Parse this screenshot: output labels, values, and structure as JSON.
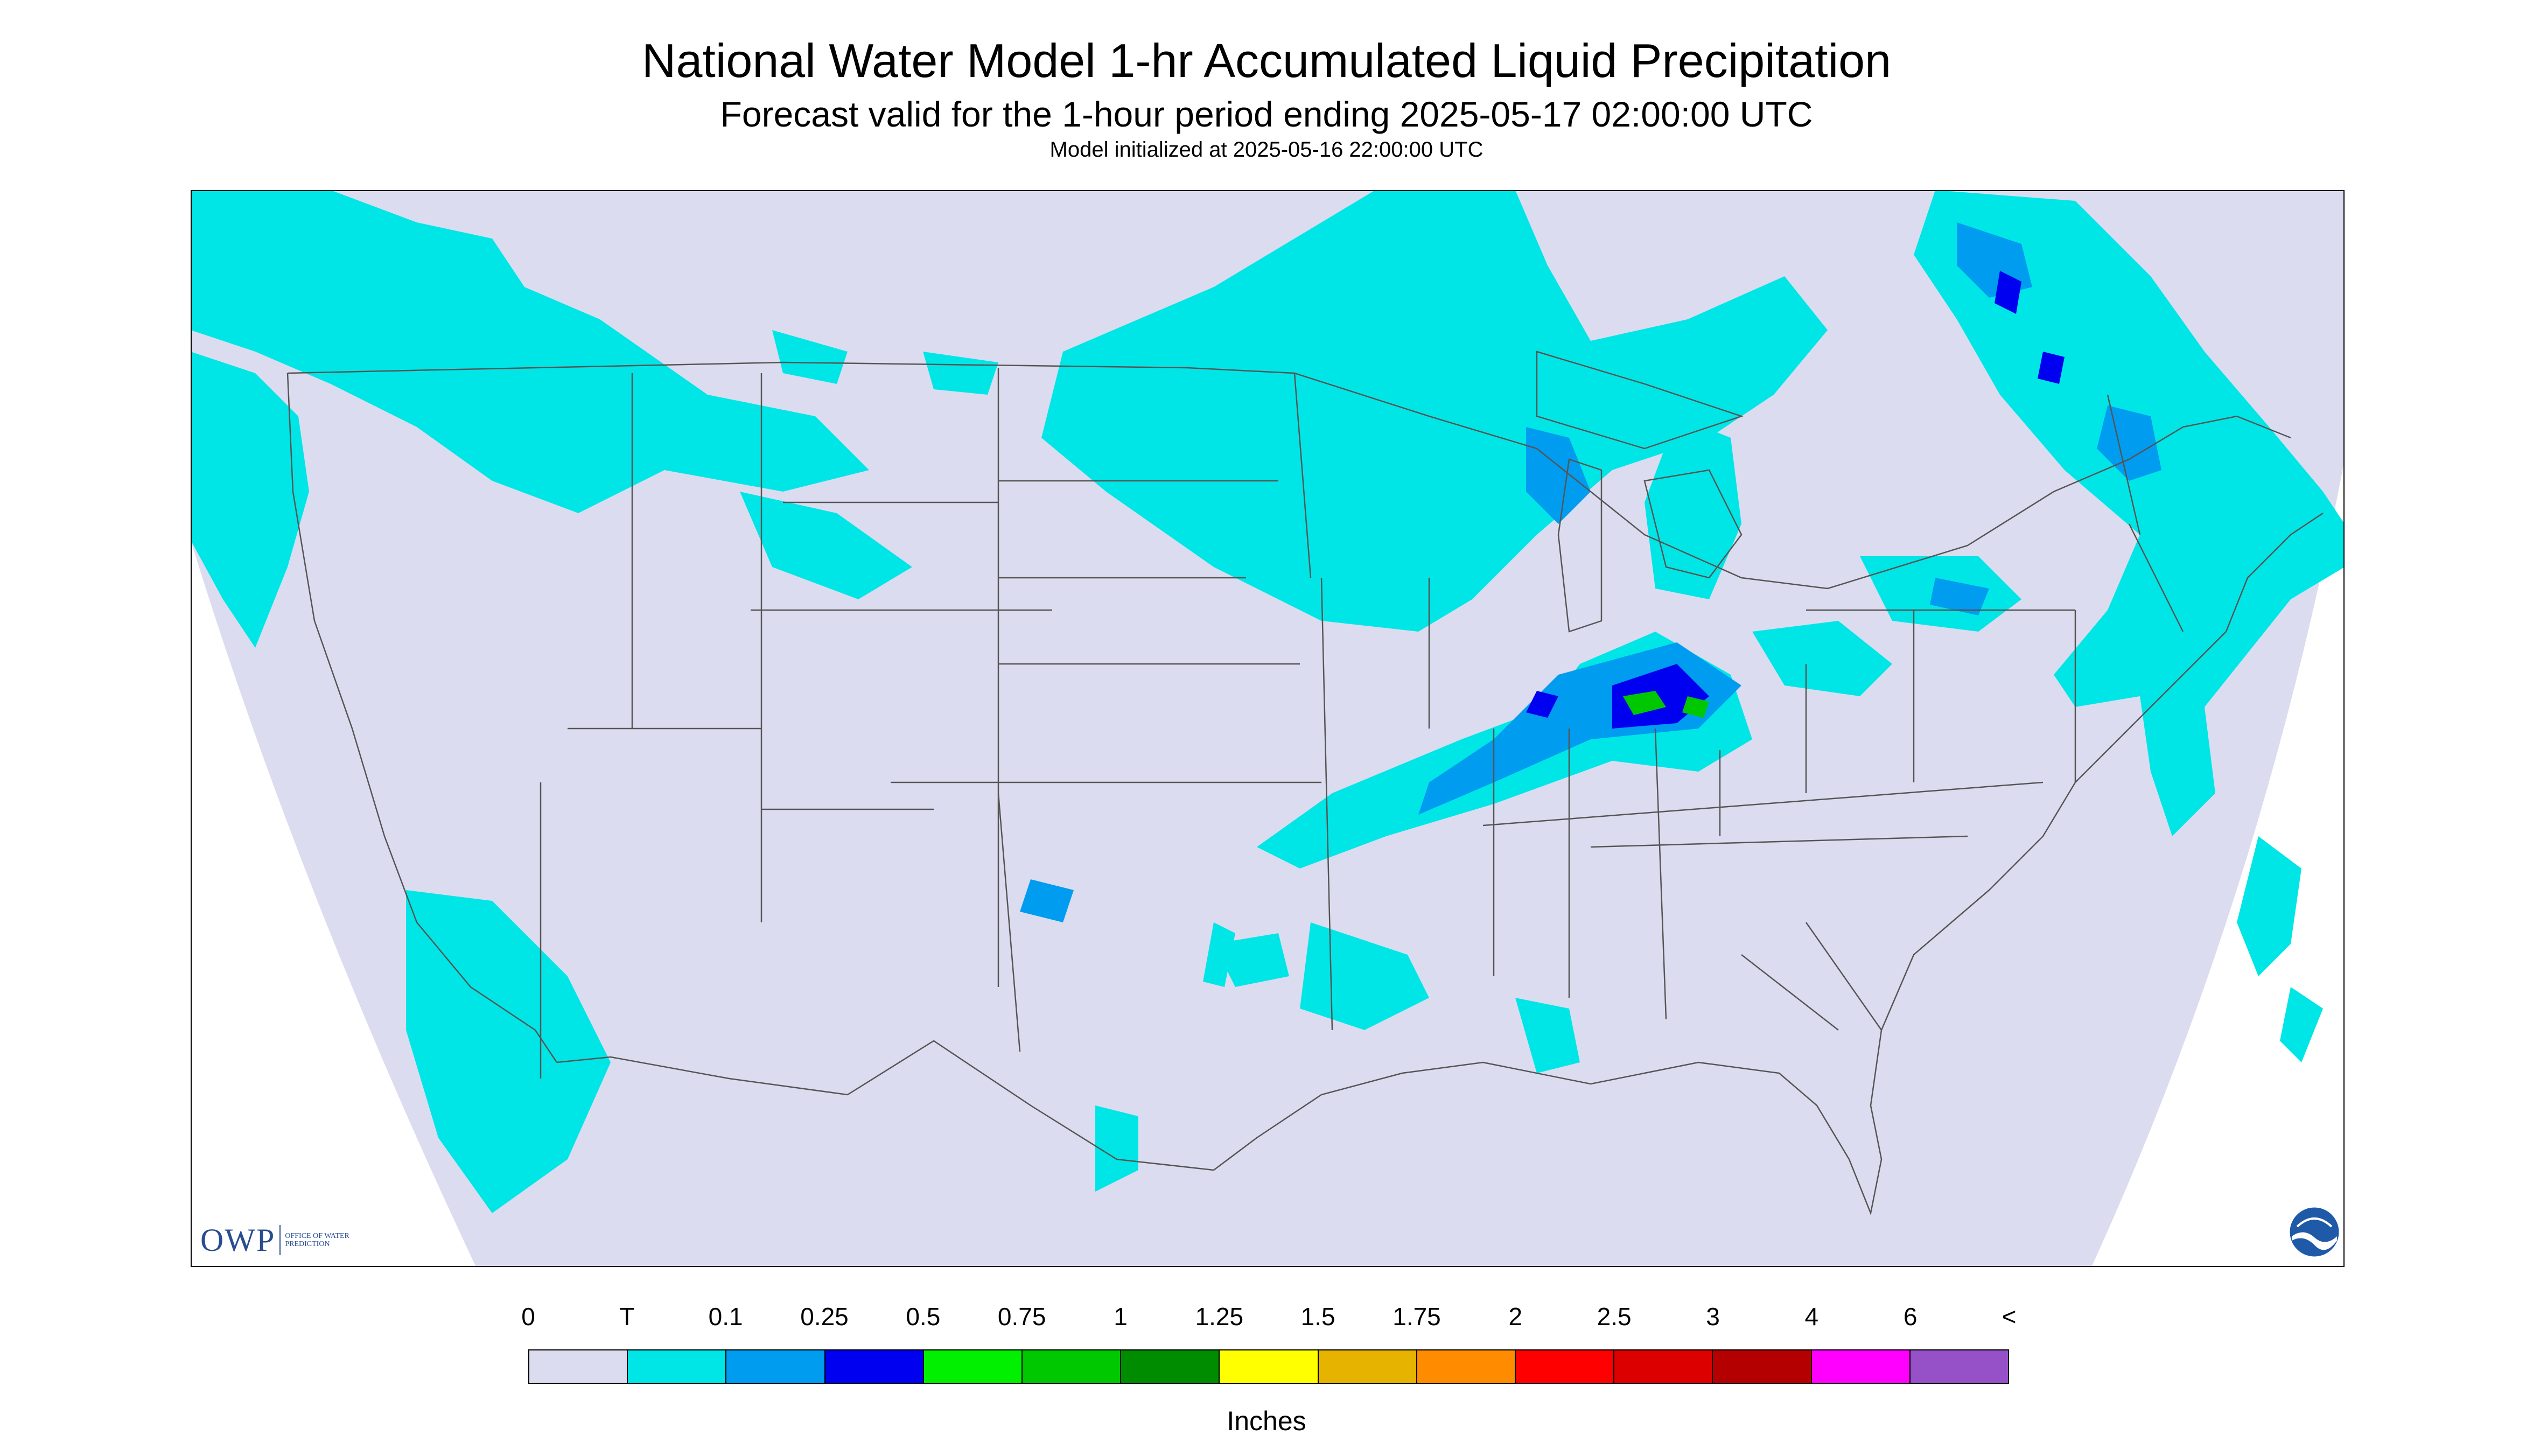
{
  "header": {
    "title": "National Water Model 1-hr Accumulated Liquid Precipitation",
    "subtitle": "Forecast valid for the 1-hour period ending 2025-05-17 02:00:00 UTC",
    "init_line": "Model initialized at 2025-05-16 22:00:00 UTC"
  },
  "legend": {
    "ticks": [
      "0",
      "T",
      "0.1",
      "0.25",
      "0.5",
      "0.75",
      "1",
      "1.25",
      "1.5",
      "1.75",
      "2",
      "2.5",
      "3",
      "4",
      "6",
      "<"
    ],
    "colors": [
      "#dcdcf0",
      "#00e6e6",
      "#009cf0",
      "#0000f0",
      "#00f000",
      "#00c800",
      "#008c00",
      "#ffff00",
      "#e6b400",
      "#ff8c00",
      "#ff0000",
      "#dc0000",
      "#b40000",
      "#ff00ff",
      "#9650c8"
    ],
    "units": "Inches"
  },
  "logos": {
    "owp_mark": "OWP",
    "owp_text": "OFFICE OF WATER PREDICTION",
    "noaa": "NOAA"
  },
  "map": {
    "domain_color": "#dcdcf0",
    "outside_color": "#ffffff",
    "trace_color": "#00e6e6",
    "light_color": "#009cf0",
    "moderate_color": "#0000f0",
    "heavy_color": "#00c800",
    "border_color": "#555555"
  }
}
